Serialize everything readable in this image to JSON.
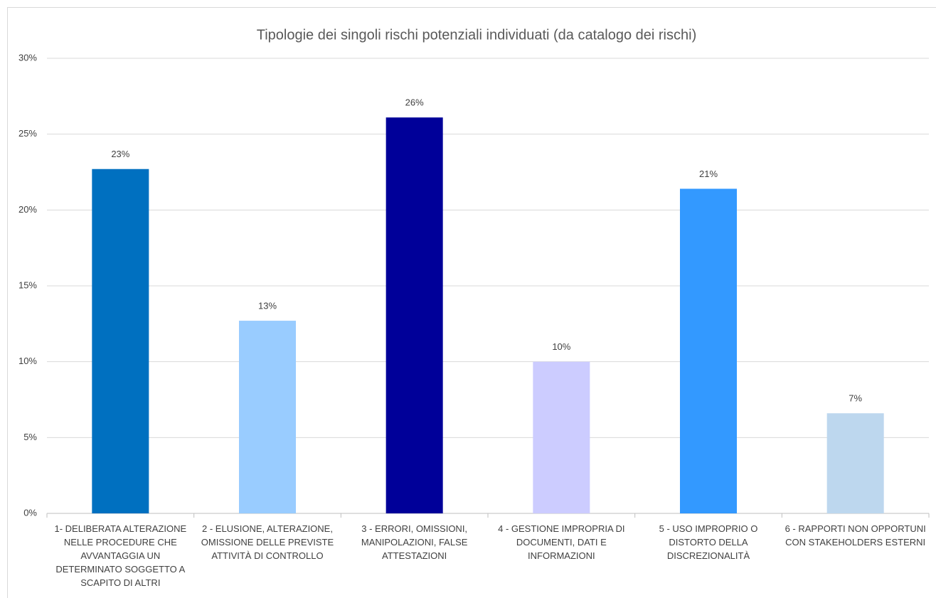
{
  "chart_data": {
    "type": "bar",
    "title": "Tipologie dei singoli rischi potenziali individuati (da catalogo dei rischi)",
    "categories": [
      "1- DELIBERATA ALTERAZIONE NELLE PROCEDURE CHE AVVANTAGGIA UN DETERMINATO SOGGETTO A SCAPITO DI ALTRI",
      "2 - ELUSIONE, ALTERAZIONE, OMISSIONE DELLE PREVISTE ATTIVITÀ DI CONTROLLO",
      "3 - ERRORI, OMISSIONI, MANIPOLAZIONI, FALSE ATTESTAZIONI",
      "4 - GESTIONE IMPROPRIA DI DOCUMENTI, DATI E INFORMAZIONI",
      "5 - USO IMPROPRIO O DISTORTO DELLA DISCREZIONALITÀ",
      "6 - RAPPORTI NON OPPORTUNI CON STAKEHOLDERS ESTERNI"
    ],
    "values": [
      22.7,
      12.7,
      26.1,
      10.0,
      21.4,
      6.6
    ],
    "value_labels": [
      "23%",
      "13%",
      "26%",
      "10%",
      "21%",
      "7%"
    ],
    "colors": [
      "#0070c0",
      "#99ccff",
      "#000099",
      "#ccccff",
      "#3399ff",
      "#bdd7ee"
    ],
    "ylim": [
      0,
      30
    ],
    "yticks": [
      {
        "value": 0,
        "label": "0%"
      },
      {
        "value": 5,
        "label": "5%"
      },
      {
        "value": 10,
        "label": "10%"
      },
      {
        "value": 15,
        "label": "15%"
      },
      {
        "value": 20,
        "label": "20%"
      },
      {
        "value": 25,
        "label": "25%"
      },
      {
        "value": 30,
        "label": "30%"
      }
    ],
    "grid": true
  }
}
